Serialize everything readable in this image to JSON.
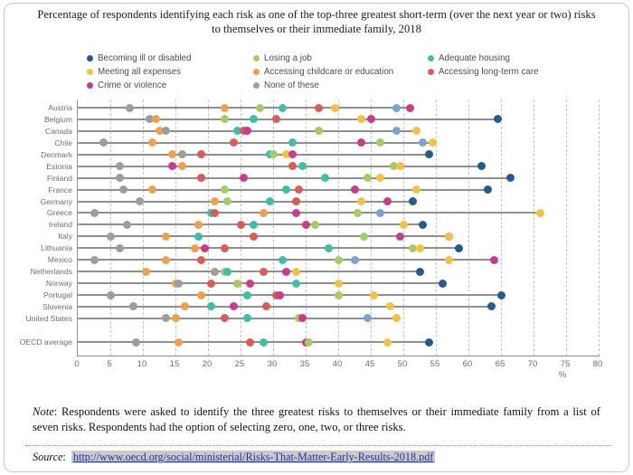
{
  "title": "Percentage of respondents identifying each risk as one of the top-three greatest short-term (over the next year or two) risks to themselves or their immediate family, 2018",
  "note": {
    "label": "Note",
    "text": ": Respondents were asked to identify the three greatest risks to themselves or their immediate family from a list of seven risks. Respondents had the option of selecting zero, one, two, or three risks."
  },
  "source": {
    "label": "Source",
    "colon": ":  ",
    "url": "http://www.oecd.org/social/ministerial/Risks-That-Matter-Early-Results-2018.pdf"
  },
  "colors": {
    "ill": "#27598D",
    "ill_light": "#7AA5CB",
    "job": "#A6CB63",
    "housing": "#3FBFA4",
    "expenses": "#F2C245",
    "childcare": "#EDA14F",
    "ltc": "#D95C5A",
    "crime": "#C83C8C",
    "none": "#9D9D9D",
    "row_line": "#8f8f8f",
    "grid": "#c6c6c6",
    "link_blue": "#2431a8",
    "divider_red": "#cf6868"
  },
  "legend": {
    "columns": [
      [
        {
          "key": "ill",
          "label": "Becoming ill or disabled"
        },
        {
          "key": "expenses",
          "label": "Meeting all expenses"
        },
        {
          "key": "crime",
          "label": "Crime or violence"
        }
      ],
      [
        {
          "key": "job",
          "label": "Losing a job"
        },
        {
          "key": "childcare",
          "label": "Accessing childcare or education"
        },
        {
          "key": "none",
          "label": "None of these"
        }
      ],
      [
        {
          "key": "housing",
          "label": "Adequate housing"
        },
        {
          "key": "ltc",
          "label": "Accessing long-term care"
        }
      ]
    ]
  },
  "chart_data": {
    "type": "scatter",
    "xlabel": "%",
    "xlim": [
      0,
      80
    ],
    "ticks": [
      0,
      5,
      10,
      15,
      20,
      25,
      30,
      35,
      40,
      45,
      50,
      55,
      60,
      65,
      70,
      75,
      80
    ],
    "grid": "dashed-vertical",
    "legend_position": "top",
    "series_keys": [
      "ill",
      "job",
      "housing",
      "expenses",
      "childcare",
      "ltc",
      "crime",
      "none"
    ],
    "series_labels": {
      "ill": "Becoming ill or disabled",
      "job": "Losing a job",
      "housing": "Adequate housing",
      "expenses": "Meeting all expenses",
      "childcare": "Accessing childcare or education",
      "ltc": "Accessing long-term care",
      "crime": "Crime or violence",
      "none": "None of these"
    },
    "rows": [
      {
        "country": "Austria",
        "light_ill": true,
        "values": {
          "ill": 49,
          "job": 28,
          "housing": 31.5,
          "expenses": 39.5,
          "childcare": 22.5,
          "ltc": 37,
          "crime": 51,
          "none": 8
        }
      },
      {
        "country": "Belgium",
        "light_ill": false,
        "values": {
          "ill": 64.5,
          "job": 22.5,
          "housing": 27,
          "expenses": 43.5,
          "childcare": 12,
          "ltc": 30.5,
          "crime": 45,
          "none": 11
        }
      },
      {
        "country": "Canada",
        "light_ill": true,
        "values": {
          "ill": 49,
          "job": 37,
          "housing": 24.5,
          "expenses": 52,
          "childcare": 12.5,
          "ltc": 25.5,
          "crime": 26,
          "none": 13.5
        }
      },
      {
        "country": "Chile",
        "light_ill": true,
        "values": {
          "ill": 53,
          "job": 46.5,
          "housing": 33,
          "expenses": 54.5,
          "childcare": 11.5,
          "ltc": 24,
          "crime": 43.5,
          "none": 4
        }
      },
      {
        "country": "Denmark",
        "light_ill": false,
        "values": {
          "ill": 54,
          "job": 30,
          "housing": 29.5,
          "expenses": 32,
          "childcare": 14.5,
          "ltc": 19,
          "crime": 33,
          "none": 16
        }
      },
      {
        "country": "Estonia",
        "light_ill": false,
        "values": {
          "ill": 62,
          "job": 48.5,
          "housing": 34.5,
          "expenses": 49.5,
          "childcare": 16,
          "ltc": 33,
          "crime": 14.5,
          "none": 6.5
        }
      },
      {
        "country": "Finland",
        "light_ill": false,
        "values": {
          "ill": 66.5,
          "job": 44.5,
          "housing": 38,
          "expenses": 46.5,
          "childcare": 6.5,
          "ltc": 19,
          "crime": 25.5,
          "none": 6.5
        }
      },
      {
        "country": "France",
        "light_ill": false,
        "values": {
          "ill": 63,
          "job": 22.5,
          "housing": 32,
          "expenses": 52,
          "childcare": 11.5,
          "ltc": 34,
          "crime": 42.5,
          "none": 7
        }
      },
      {
        "country": "Germany",
        "light_ill": false,
        "values": {
          "ill": 51.5,
          "job": 23,
          "housing": 29.5,
          "expenses": 43.5,
          "childcare": 21,
          "ltc": 33.5,
          "crime": 47.5,
          "none": 9.5
        }
      },
      {
        "country": "Greece",
        "light_ill": true,
        "values": {
          "ill": 46.5,
          "job": 43,
          "housing": 20.5,
          "expenses": 71,
          "childcare": 28.5,
          "ltc": 21,
          "crime": 33.5,
          "none": 2.5
        }
      },
      {
        "country": "Ireland",
        "light_ill": false,
        "values": {
          "ill": 53,
          "job": 36.5,
          "housing": 27,
          "expenses": 50,
          "childcare": 18.5,
          "ltc": 25,
          "crime": 35,
          "none": 7.5
        }
      },
      {
        "country": "Italy",
        "light_ill": false,
        "values": {
          "ill": 57,
          "job": 44,
          "housing": 18.5,
          "expenses": 57,
          "childcare": 13.5,
          "ltc": 27,
          "crime": 49.5,
          "none": 5
        }
      },
      {
        "country": "Lithuania",
        "light_ill": false,
        "values": {
          "ill": 58.5,
          "job": 51.5,
          "housing": 38.5,
          "expenses": 52.5,
          "childcare": 18,
          "ltc": 22.5,
          "crime": 19.5,
          "none": 6.5
        }
      },
      {
        "country": "Mexico",
        "light_ill": true,
        "values": {
          "ill": 42.5,
          "job": 40,
          "housing": 31.5,
          "expenses": 57,
          "childcare": 13.5,
          "ltc": 19,
          "crime": 64,
          "none": 2.5
        }
      },
      {
        "country": "Netherlands",
        "light_ill": false,
        "values": {
          "ill": 52.5,
          "job": 22.5,
          "housing": 23,
          "expenses": 33.5,
          "childcare": 10.5,
          "ltc": 28.5,
          "crime": 32,
          "none": 21
        }
      },
      {
        "country": "Norway",
        "light_ill": false,
        "values": {
          "ill": 56,
          "job": 24.5,
          "housing": 33.5,
          "expenses": 40,
          "childcare": 15,
          "ltc": 20.5,
          "crime": 26.5,
          "none": 15.5
        }
      },
      {
        "country": "Portugal",
        "light_ill": false,
        "values": {
          "ill": 65,
          "job": 40,
          "housing": 26,
          "expenses": 45.5,
          "childcare": 19,
          "ltc": 30.5,
          "crime": 31,
          "none": 5
        }
      },
      {
        "country": "Slovenia",
        "light_ill": false,
        "values": {
          "ill": 63.5,
          "job": 20.5,
          "housing": 20.5,
          "expenses": 48,
          "childcare": 16.5,
          "ltc": 29,
          "crime": 24,
          "none": 8.5
        }
      },
      {
        "country": "United States",
        "light_ill": true,
        "values": {
          "ill": 44.5,
          "job": 34,
          "housing": 26,
          "expenses": 49,
          "childcare": 15,
          "ltc": 22.5,
          "crime": 34.5,
          "none": 13.5
        }
      },
      {
        "country": "OECD average",
        "light_ill": false,
        "values": {
          "ill": 54,
          "job": 35.5,
          "housing": 28.5,
          "expenses": 47.5,
          "childcare": 15.5,
          "ltc": 26.5,
          "crime": 35,
          "none": 9
        }
      }
    ]
  }
}
